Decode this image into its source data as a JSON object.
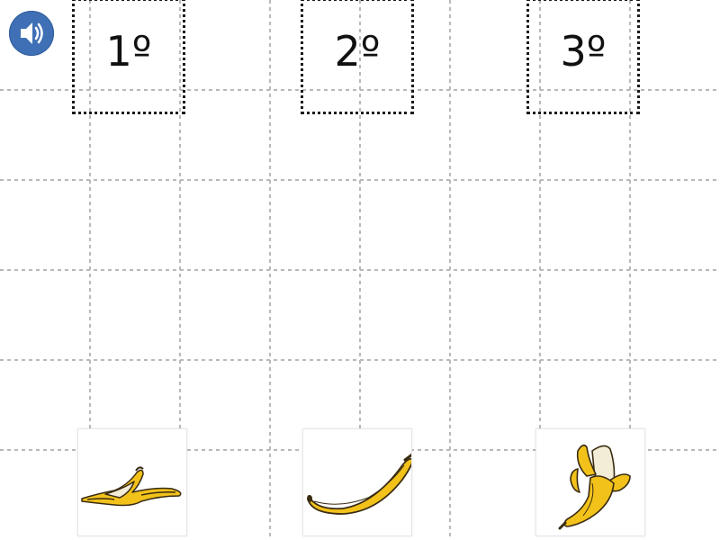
{
  "toolbar": {
    "audio_icon": "speaker-icon",
    "audio_color": "#3f70b5"
  },
  "slots": [
    {
      "label": "1º"
    },
    {
      "label": "2º"
    },
    {
      "label": "3º"
    }
  ],
  "cards": [
    {
      "icon": "banana-peel-icon"
    },
    {
      "icon": "whole-banana-icon"
    },
    {
      "icon": "half-peeled-banana-icon"
    }
  ],
  "colors": {
    "grid_line": "#b9b9b9",
    "banana_yellow": "#f2c21b",
    "banana_outline": "#3a2c12",
    "peel_inside": "#f3ecd7"
  }
}
